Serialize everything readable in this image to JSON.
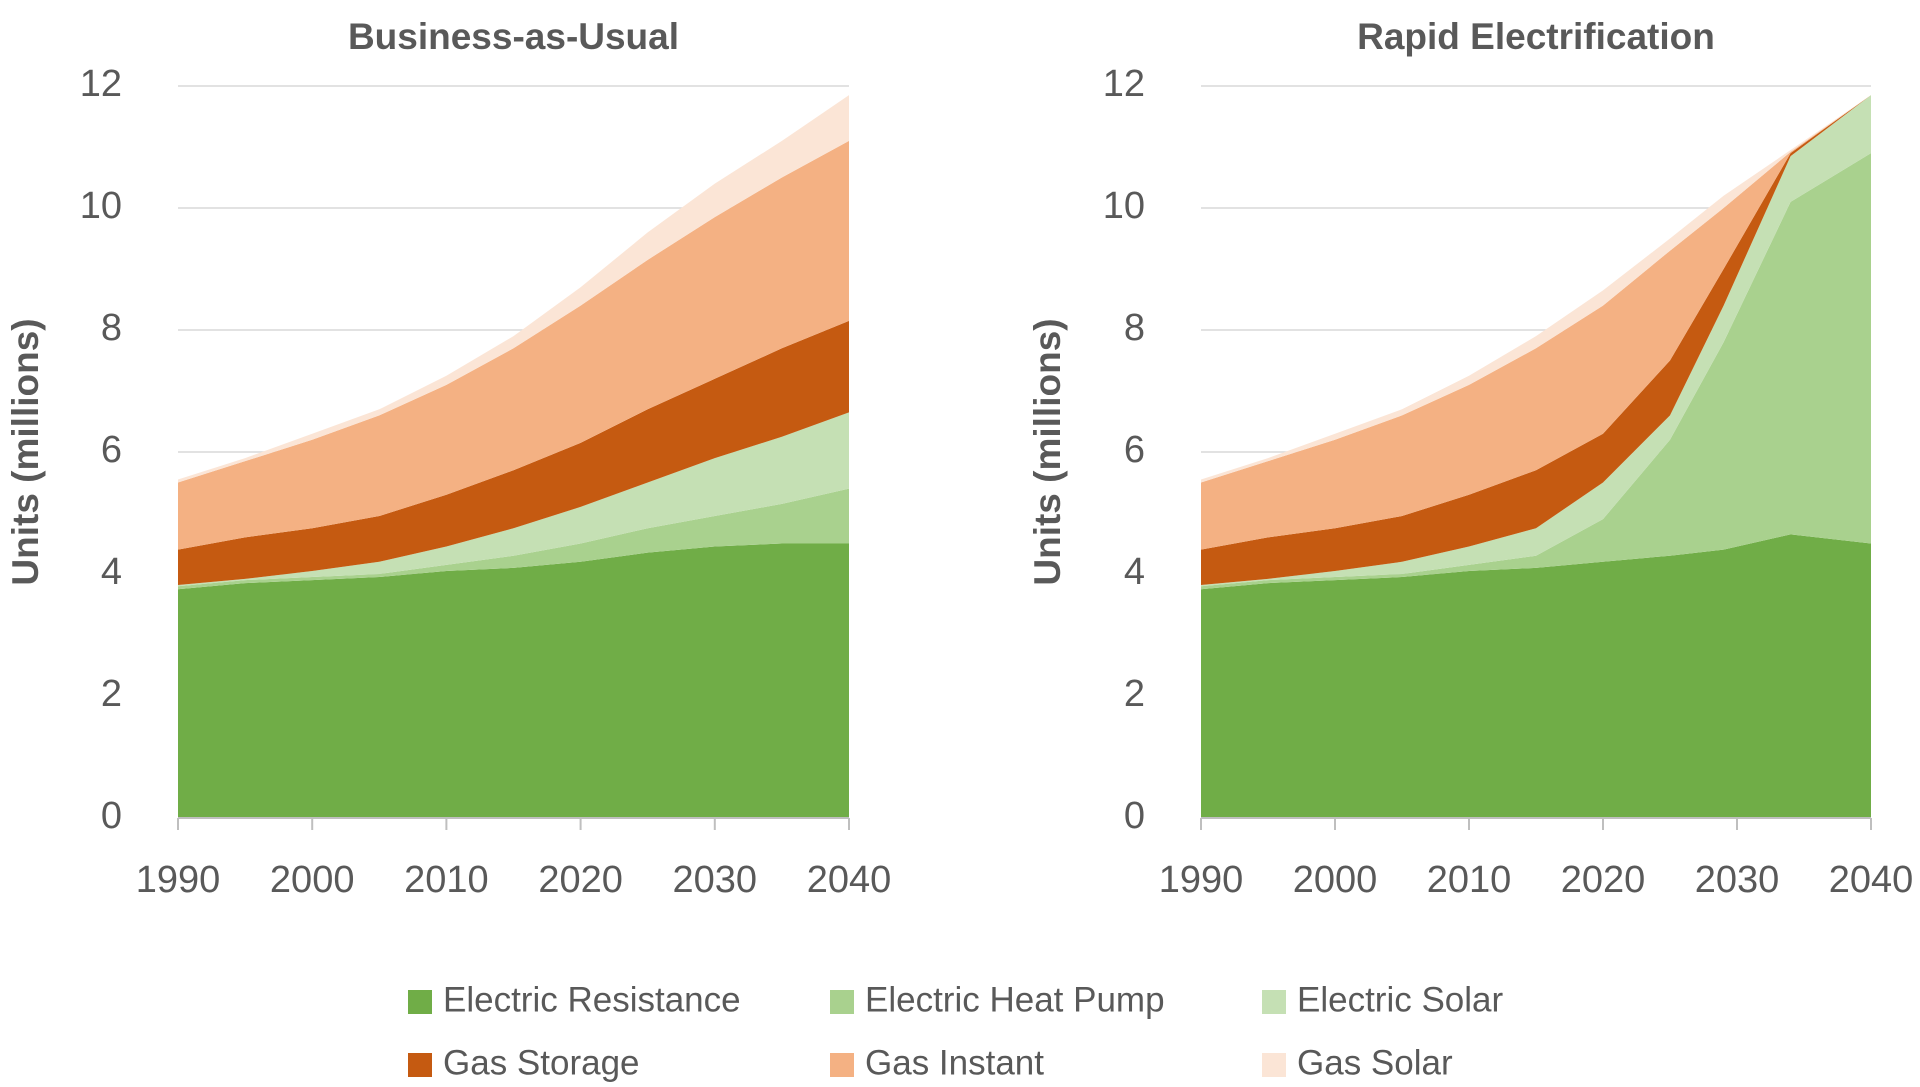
{
  "chart_data": [
    {
      "type": "stacked-area",
      "title": "Business-as-Usual",
      "y_label": "Units (millions)",
      "x": [
        1990,
        1995,
        2000,
        2005,
        2010,
        2015,
        2020,
        2025,
        2030,
        2035,
        2040
      ],
      "xlim": [
        1990,
        2040
      ],
      "xticks": [
        1990,
        2000,
        2010,
        2020,
        2030,
        2040
      ],
      "ylim": [
        0,
        12
      ],
      "yticks": [
        0,
        2,
        4,
        6,
        8,
        10,
        12
      ],
      "grid": true,
      "series": [
        {
          "name": "Electric Resistance",
          "color": "#70ad47",
          "values": [
            3.75,
            3.85,
            3.9,
            3.95,
            4.05,
            4.1,
            4.2,
            4.35,
            4.45,
            4.5,
            4.5
          ]
        },
        {
          "name": "Electric Heat Pump",
          "color": "#a9d18e",
          "values": [
            0.05,
            0.05,
            0.05,
            0.05,
            0.1,
            0.2,
            0.3,
            0.4,
            0.5,
            0.65,
            0.9
          ]
        },
        {
          "name": "Electric Solar",
          "color": "#c5e0b4",
          "values": [
            0.02,
            0.02,
            0.1,
            0.2,
            0.3,
            0.45,
            0.6,
            0.75,
            0.95,
            1.1,
            1.25
          ]
        },
        {
          "name": "Gas Storage",
          "color": "#c55a11",
          "values": [
            0.58,
            0.68,
            0.7,
            0.75,
            0.85,
            0.95,
            1.05,
            1.2,
            1.3,
            1.45,
            1.5
          ]
        },
        {
          "name": "Gas Instant",
          "color": "#f4b183",
          "values": [
            1.1,
            1.25,
            1.45,
            1.65,
            1.8,
            2.0,
            2.25,
            2.45,
            2.65,
            2.8,
            2.95
          ]
        },
        {
          "name": "Gas Solar",
          "color": "#fbe5d6",
          "values": [
            0.05,
            0.05,
            0.1,
            0.1,
            0.15,
            0.2,
            0.3,
            0.45,
            0.55,
            0.6,
            0.75
          ]
        }
      ]
    },
    {
      "type": "stacked-area",
      "title": "Rapid Electrification",
      "y_label": "Units (millions)",
      "x": [
        1990,
        1995,
        2000,
        2005,
        2010,
        2015,
        2020,
        2025,
        2029,
        2034,
        2040
      ],
      "xlim": [
        1990,
        2040
      ],
      "xticks": [
        1990,
        2000,
        2010,
        2020,
        2030,
        2040
      ],
      "ylim": [
        0,
        12
      ],
      "yticks": [
        0,
        2,
        4,
        6,
        8,
        10,
        12
      ],
      "grid": true,
      "series": [
        {
          "color": "#70ad47",
          "values": [
            3.75,
            3.85,
            3.9,
            3.95,
            4.05,
            4.1,
            4.2,
            4.3,
            4.4,
            4.65,
            4.5
          ]
        },
        {
          "color": "#a9d18e",
          "values": [
            0.05,
            0.05,
            0.05,
            0.05,
            0.1,
            0.2,
            0.7,
            1.9,
            3.4,
            5.45,
            6.4
          ]
        },
        {
          "color": "#c5e0b4",
          "values": [
            0.02,
            0.02,
            0.1,
            0.2,
            0.3,
            0.45,
            0.6,
            0.4,
            0.6,
            0.75,
            0.95
          ]
        },
        {
          "color": "#c55a11",
          "values": [
            0.58,
            0.68,
            0.7,
            0.75,
            0.85,
            0.95,
            0.8,
            0.9,
            0.6,
            0.05,
            0
          ]
        },
        {
          "color": "#f4b183",
          "values": [
            1.1,
            1.25,
            1.45,
            1.65,
            1.8,
            2.0,
            2.1,
            1.8,
            1.0,
            0.02,
            0
          ]
        },
        {
          "color": "#fbe5d6",
          "values": [
            0.05,
            0.05,
            0.1,
            0.1,
            0.15,
            0.2,
            0.25,
            0.2,
            0.2,
            0.03,
            0
          ]
        }
      ]
    }
  ]
}
